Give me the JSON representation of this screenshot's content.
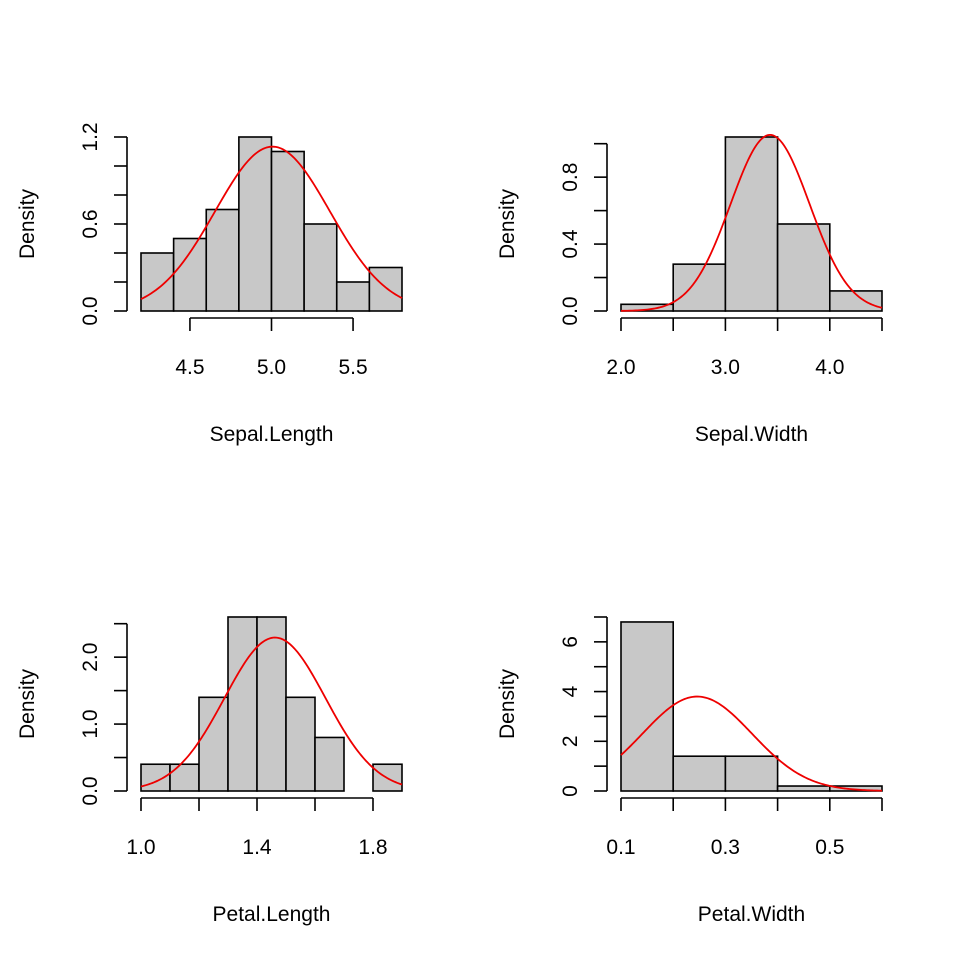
{
  "colors": {
    "bar_fill": "#c8c8c8",
    "bar_stroke": "#000000",
    "curve": "#ee0000",
    "axis": "#000000"
  },
  "chart_data": [
    {
      "type": "bar",
      "subtype": "histogram-with-density-curve",
      "xlabel": "Sepal.Length",
      "ylabel": "Density",
      "breaks": [
        4.2,
        4.4,
        4.6,
        4.8,
        5.0,
        5.2,
        5.4,
        5.6,
        5.8
      ],
      "values": [
        0.4,
        0.5,
        0.7,
        1.2,
        1.1,
        0.6,
        0.2,
        0.3
      ],
      "xlim": [
        4.2,
        5.8
      ],
      "ylim": [
        0,
        1.2
      ],
      "xticks": [
        4.5,
        5.0,
        5.5
      ],
      "xtick_labels": [
        "4.5",
        "5.0",
        "5.5"
      ],
      "yticks": [
        0,
        0.2,
        0.4,
        0.6,
        0.8,
        1.0,
        1.2
      ],
      "ytick_labels": [
        "0.0",
        "",
        "",
        "0.6",
        "",
        "",
        "1.2"
      ],
      "curve": {
        "type": "normal",
        "mean": 5.006,
        "sd": 0.352
      }
    },
    {
      "type": "bar",
      "subtype": "histogram-with-density-curve",
      "xlabel": "Sepal.Width",
      "ylabel": "Density",
      "breaks": [
        2.0,
        2.5,
        3.0,
        3.5,
        4.0,
        4.5
      ],
      "values": [
        0.04,
        0.28,
        1.04,
        0.52,
        0.12
      ],
      "xlim": [
        2.0,
        4.5
      ],
      "ylim": [
        0,
        1.04
      ],
      "xticks": [
        2.0,
        2.5,
        3.0,
        3.5,
        4.0,
        4.5
      ],
      "xtick_labels": [
        "2.0",
        "",
        "3.0",
        "",
        "4.0",
        ""
      ],
      "yticks": [
        0,
        0.2,
        0.4,
        0.6,
        0.8,
        1.0
      ],
      "ytick_labels": [
        "0.0",
        "",
        "0.4",
        "",
        "0.8",
        ""
      ],
      "curve": {
        "type": "normal",
        "mean": 3.428,
        "sd": 0.379
      }
    },
    {
      "type": "bar",
      "subtype": "histogram-with-density-curve",
      "xlabel": "Petal.Length",
      "ylabel": "Density",
      "breaks": [
        1.0,
        1.1,
        1.2,
        1.3,
        1.4,
        1.5,
        1.6,
        1.7,
        1.8,
        1.9
      ],
      "values": [
        0.4,
        0.4,
        1.4,
        2.6,
        2.6,
        1.4,
        0.8,
        0.0,
        0.4
      ],
      "xlim": [
        1.0,
        1.9
      ],
      "ylim": [
        0,
        2.6
      ],
      "xticks": [
        1.0,
        1.2,
        1.4,
        1.6,
        1.8
      ],
      "xtick_labels": [
        "1.0",
        "",
        "1.4",
        "",
        "1.8"
      ],
      "yticks": [
        0,
        0.5,
        1.0,
        1.5,
        2.0,
        2.5
      ],
      "ytick_labels": [
        "0.0",
        "",
        "1.0",
        "",
        "2.0",
        ""
      ],
      "curve": {
        "type": "normal",
        "mean": 1.462,
        "sd": 0.174
      }
    },
    {
      "type": "bar",
      "subtype": "histogram-with-density-curve",
      "xlabel": "Petal.Width",
      "ylabel": "Density",
      "breaks": [
        0.1,
        0.2,
        0.3,
        0.4,
        0.5,
        0.6
      ],
      "values": [
        6.8,
        1.4,
        1.4,
        0.2,
        0.2
      ],
      "xlim": [
        0.1,
        0.6
      ],
      "ylim": [
        0,
        7
      ],
      "xticks": [
        0.1,
        0.2,
        0.3,
        0.4,
        0.5,
        0.6
      ],
      "xtick_labels": [
        "0.1",
        "",
        "0.3",
        "",
        "0.5",
        ""
      ],
      "yticks": [
        0,
        1,
        2,
        3,
        4,
        5,
        6,
        7
      ],
      "ytick_labels": [
        "0",
        "",
        "2",
        "",
        "4",
        "",
        "6",
        ""
      ],
      "curve": {
        "type": "normal",
        "mean": 0.246,
        "sd": 0.105
      }
    }
  ]
}
